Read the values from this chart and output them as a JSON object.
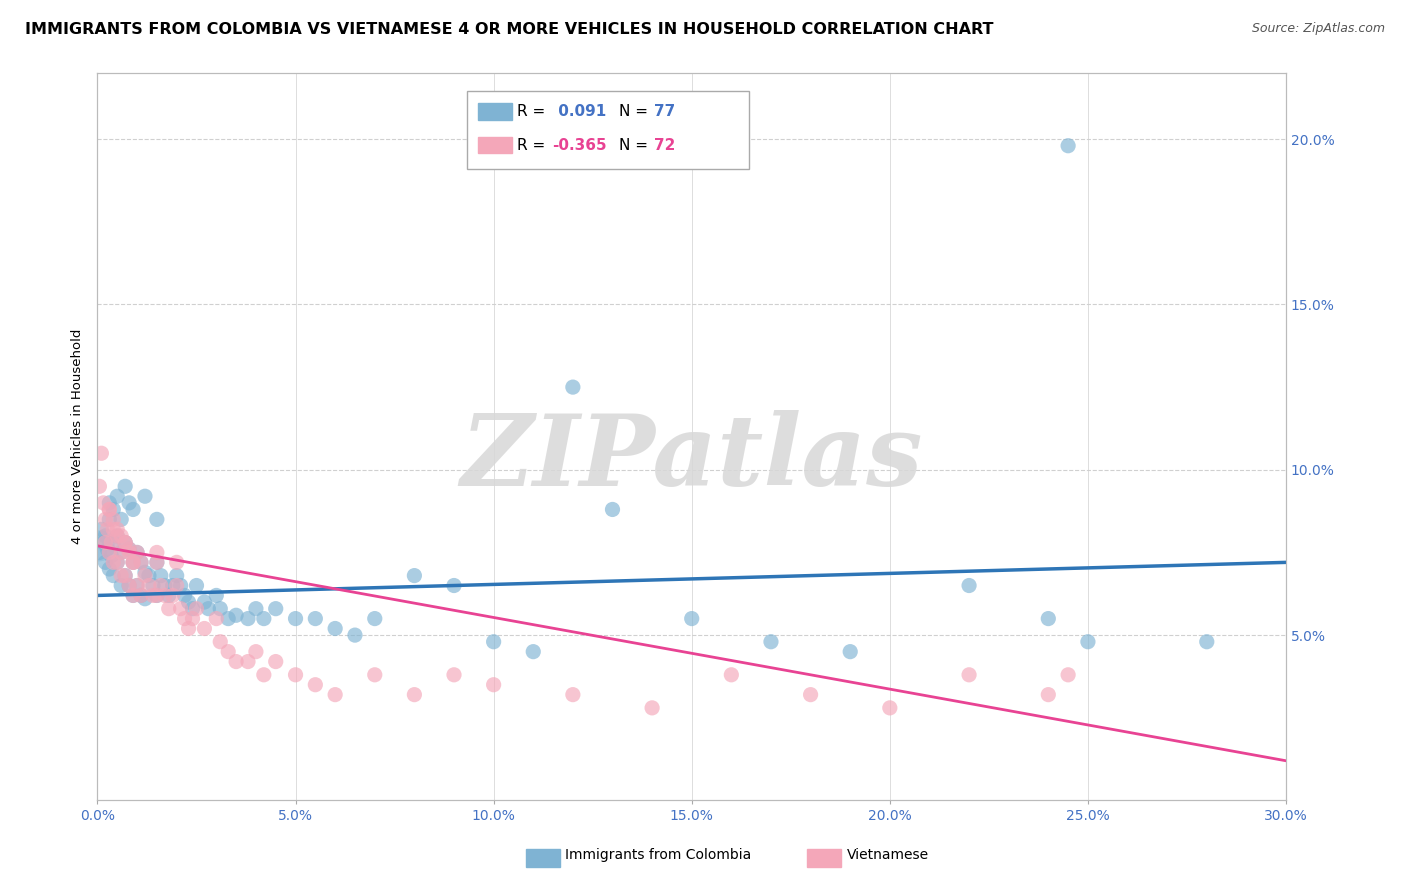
{
  "title": "IMMIGRANTS FROM COLOMBIA VS VIETNAMESE 4 OR MORE VEHICLES IN HOUSEHOLD CORRELATION CHART",
  "source": "Source: ZipAtlas.com",
  "ylabel": "4 or more Vehicles in Household",
  "legend_colombia_label": "Immigrants from Colombia",
  "legend_vietnamese_label": "Vietnamese",
  "colombia_R": "0.091",
  "colombia_N": "77",
  "vietnamese_R": "-0.365",
  "vietnamese_N": "72",
  "colombia_color": "#7fb3d3",
  "vietnamese_color": "#f4a7b9",
  "colombia_line_color": "#2e75b6",
  "vietnamese_line_color": "#e84393",
  "colombia_scatter_x": [
    0.0005,
    0.001,
    0.0015,
    0.002,
    0.002,
    0.0025,
    0.003,
    0.003,
    0.0035,
    0.004,
    0.004,
    0.005,
    0.005,
    0.006,
    0.006,
    0.007,
    0.007,
    0.008,
    0.008,
    0.009,
    0.009,
    0.01,
    0.01,
    0.011,
    0.011,
    0.012,
    0.012,
    0.013,
    0.014,
    0.015,
    0.015,
    0.016,
    0.017,
    0.018,
    0.019,
    0.02,
    0.021,
    0.022,
    0.023,
    0.024,
    0.025,
    0.027,
    0.028,
    0.03,
    0.031,
    0.033,
    0.035,
    0.038,
    0.04,
    0.042,
    0.045,
    0.05,
    0.055,
    0.06,
    0.065,
    0.07,
    0.08,
    0.09,
    0.1,
    0.11,
    0.12,
    0.13,
    0.15,
    0.17,
    0.19,
    0.22,
    0.24,
    0.25,
    0.003,
    0.004,
    0.005,
    0.006,
    0.007,
    0.008,
    0.009,
    0.012,
    0.015
  ],
  "colombia_scatter_y": [
    0.075,
    0.082,
    0.078,
    0.08,
    0.072,
    0.076,
    0.085,
    0.07,
    0.074,
    0.078,
    0.068,
    0.08,
    0.072,
    0.075,
    0.065,
    0.078,
    0.068,
    0.076,
    0.065,
    0.072,
    0.062,
    0.075,
    0.065,
    0.072,
    0.062,
    0.069,
    0.061,
    0.068,
    0.065,
    0.072,
    0.062,
    0.068,
    0.065,
    0.062,
    0.065,
    0.068,
    0.065,
    0.062,
    0.06,
    0.058,
    0.065,
    0.06,
    0.058,
    0.062,
    0.058,
    0.055,
    0.056,
    0.055,
    0.058,
    0.055,
    0.058,
    0.055,
    0.055,
    0.052,
    0.05,
    0.055,
    0.068,
    0.065,
    0.048,
    0.045,
    0.125,
    0.088,
    0.055,
    0.048,
    0.045,
    0.065,
    0.055,
    0.048,
    0.09,
    0.088,
    0.092,
    0.085,
    0.095,
    0.09,
    0.088,
    0.092,
    0.085
  ],
  "vietnamese_scatter_x": [
    0.0005,
    0.001,
    0.0015,
    0.002,
    0.002,
    0.0025,
    0.003,
    0.003,
    0.0035,
    0.004,
    0.004,
    0.005,
    0.005,
    0.006,
    0.006,
    0.007,
    0.007,
    0.008,
    0.008,
    0.009,
    0.009,
    0.01,
    0.01,
    0.011,
    0.011,
    0.012,
    0.013,
    0.014,
    0.015,
    0.015,
    0.016,
    0.017,
    0.018,
    0.019,
    0.02,
    0.021,
    0.022,
    0.023,
    0.024,
    0.025,
    0.027,
    0.03,
    0.031,
    0.033,
    0.035,
    0.038,
    0.04,
    0.042,
    0.045,
    0.05,
    0.055,
    0.06,
    0.07,
    0.08,
    0.09,
    0.1,
    0.12,
    0.14,
    0.16,
    0.18,
    0.2,
    0.22,
    0.24,
    0.003,
    0.004,
    0.005,
    0.006,
    0.007,
    0.008,
    0.009,
    0.015,
    0.02
  ],
  "vietnamese_scatter_y": [
    0.095,
    0.105,
    0.09,
    0.085,
    0.078,
    0.082,
    0.088,
    0.075,
    0.078,
    0.082,
    0.072,
    0.08,
    0.072,
    0.075,
    0.068,
    0.078,
    0.068,
    0.076,
    0.065,
    0.072,
    0.062,
    0.075,
    0.065,
    0.072,
    0.062,
    0.068,
    0.065,
    0.062,
    0.072,
    0.062,
    0.065,
    0.062,
    0.058,
    0.062,
    0.065,
    0.058,
    0.055,
    0.052,
    0.055,
    0.058,
    0.052,
    0.055,
    0.048,
    0.045,
    0.042,
    0.042,
    0.045,
    0.038,
    0.042,
    0.038,
    0.035,
    0.032,
    0.038,
    0.032,
    0.038,
    0.035,
    0.032,
    0.028,
    0.038,
    0.032,
    0.028,
    0.038,
    0.032,
    0.088,
    0.085,
    0.082,
    0.08,
    0.078,
    0.075,
    0.072,
    0.075,
    0.072
  ],
  "colombia_line_x": [
    0.0,
    0.3
  ],
  "colombia_line_y": [
    0.062,
    0.072
  ],
  "vietnamese_line_x": [
    0.0,
    0.3
  ],
  "vietnamese_line_y": [
    0.077,
    0.012
  ],
  "colombia_outlier_x": [
    0.245
  ],
  "colombia_outlier_y": [
    0.198
  ],
  "colombia_outlier2_x": [
    0.28
  ],
  "colombia_outlier2_y": [
    0.048
  ],
  "vietnamese_outlier_x": [
    0.245
  ],
  "vietnamese_outlier_y": [
    0.038
  ],
  "xlim": [
    0.0,
    0.3
  ],
  "ylim": [
    0.0,
    0.22
  ],
  "xtick_vals": [
    0.0,
    0.05,
    0.1,
    0.15,
    0.2,
    0.25,
    0.3
  ],
  "ytick_vals": [
    0.05,
    0.1,
    0.15,
    0.2
  ],
  "background_color": "#ffffff",
  "grid_color": "#d0d0d0",
  "title_fontsize": 11.5,
  "source_fontsize": 9,
  "axis_fontsize": 10,
  "legend_fontsize": 11
}
